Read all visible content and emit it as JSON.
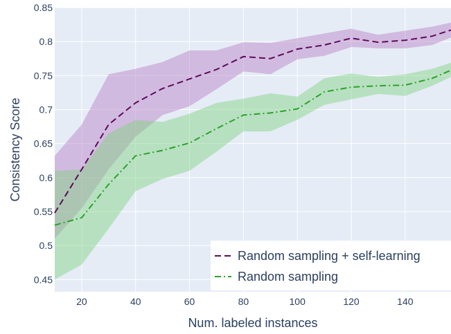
{
  "chart_data": {
    "type": "line",
    "xlabel": "Num. labeled instances",
    "ylabel": "Consistency Score",
    "xlim": [
      10,
      157
    ],
    "ylim": [
      0.432,
      0.85
    ],
    "x_ticks": [
      20,
      40,
      60,
      80,
      100,
      120,
      140
    ],
    "y_ticks": [
      0.45,
      0.5,
      0.55,
      0.6,
      0.65,
      0.7,
      0.75,
      0.8,
      0.85
    ],
    "x_tick_labels": [
      "20",
      "40",
      "60",
      "80",
      "100",
      "120",
      "140"
    ],
    "y_tick_labels": [
      "0.45",
      "0.5",
      "0.55",
      "0.6",
      "0.65",
      "0.7",
      "0.75",
      "0.8",
      "0.85"
    ],
    "grid": true,
    "legend_position": "bottom-right",
    "x": [
      10,
      20,
      30,
      40,
      50,
      60,
      70,
      80,
      90,
      100,
      110,
      120,
      130,
      140,
      150,
      157
    ],
    "series": [
      {
        "name": "Random sampling + self-learning",
        "color": "#5c0a5c",
        "band_color": "#b87fc4",
        "dash": "dash",
        "values": [
          0.548,
          0.612,
          0.678,
          0.71,
          0.731,
          0.745,
          0.759,
          0.778,
          0.775,
          0.789,
          0.795,
          0.805,
          0.799,
          0.802,
          0.808,
          0.817
        ],
        "upper": [
          0.632,
          0.678,
          0.752,
          0.76,
          0.77,
          0.787,
          0.787,
          0.799,
          0.798,
          0.805,
          0.812,
          0.819,
          0.81,
          0.816,
          0.822,
          0.828
        ],
        "lower": [
          0.51,
          0.555,
          0.612,
          0.66,
          0.692,
          0.705,
          0.73,
          0.756,
          0.752,
          0.774,
          0.779,
          0.792,
          0.79,
          0.79,
          0.795,
          0.806
        ]
      },
      {
        "name": "Random sampling",
        "color": "#2ca02c",
        "band_color": "#7ed37e",
        "dash": "dashdot",
        "values": [
          0.53,
          0.541,
          0.59,
          0.632,
          0.64,
          0.651,
          0.672,
          0.692,
          0.695,
          0.701,
          0.726,
          0.733,
          0.735,
          0.736,
          0.746,
          0.758
        ],
        "upper": [
          0.61,
          0.612,
          0.665,
          0.685,
          0.682,
          0.694,
          0.71,
          0.716,
          0.724,
          0.719,
          0.746,
          0.753,
          0.748,
          0.752,
          0.76,
          0.769
        ],
        "lower": [
          0.45,
          0.472,
          0.525,
          0.58,
          0.598,
          0.61,
          0.638,
          0.668,
          0.668,
          0.685,
          0.707,
          0.715,
          0.723,
          0.72,
          0.735,
          0.748
        ]
      }
    ]
  }
}
